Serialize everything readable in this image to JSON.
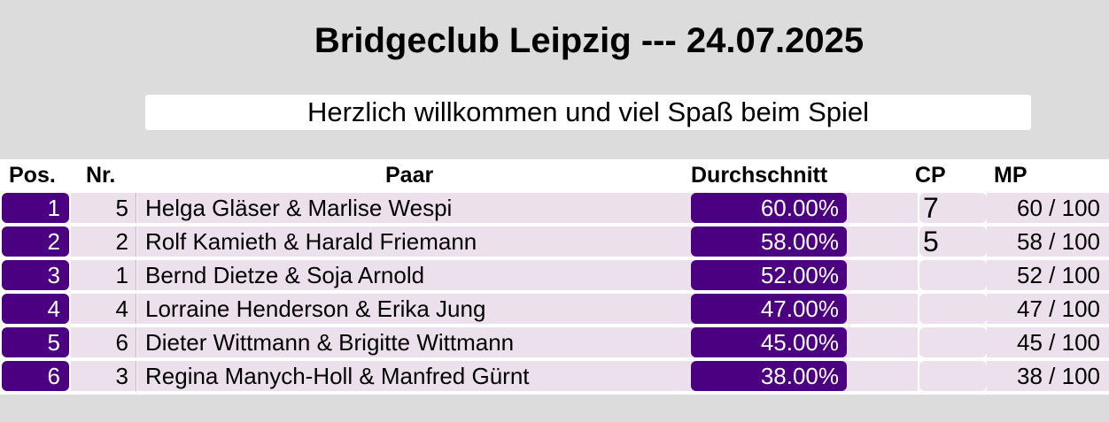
{
  "header": {
    "title": "Bridgeclub Leipzig --- 24.07.2025",
    "welcome": "Herzlich willkommen und viel Spaß beim Spiel"
  },
  "table": {
    "columns": {
      "pos": "Pos.",
      "nr": "Nr.",
      "paar": "Paar",
      "avg": "Durchschnitt",
      "cp": "CP",
      "mp": "MP"
    },
    "rows": [
      {
        "pos": "1",
        "nr": "5",
        "paar": "Helga Gläser & Marlise Wespi",
        "avg": "60.00%",
        "cp": "7",
        "mp": "60 / 100"
      },
      {
        "pos": "2",
        "nr": "2",
        "paar": "Rolf Kamieth & Harald Friemann",
        "avg": "58.00%",
        "cp": "5",
        "mp": "58 / 100"
      },
      {
        "pos": "3",
        "nr": "1",
        "paar": "Bernd Dietze & Soja Arnold",
        "avg": "52.00%",
        "cp": "",
        "mp": "52 / 100"
      },
      {
        "pos": "4",
        "nr": "4",
        "paar": "Lorraine Henderson & Erika Jung",
        "avg": "47.00%",
        "cp": "",
        "mp": "47 / 100"
      },
      {
        "pos": "5",
        "nr": "6",
        "paar": "Dieter Wittmann & Brigitte Wittmann",
        "avg": "45.00%",
        "cp": "",
        "mp": "45 / 100"
      },
      {
        "pos": "6",
        "nr": "3",
        "paar": "Regina Manych-Holl & Manfred Gürnt",
        "avg": "38.00%",
        "cp": "",
        "mp": "38 / 100"
      }
    ]
  },
  "colors": {
    "accent": "#4b0082",
    "row_bg": "#ece0ec",
    "page_bg": "#dcdcdc"
  }
}
